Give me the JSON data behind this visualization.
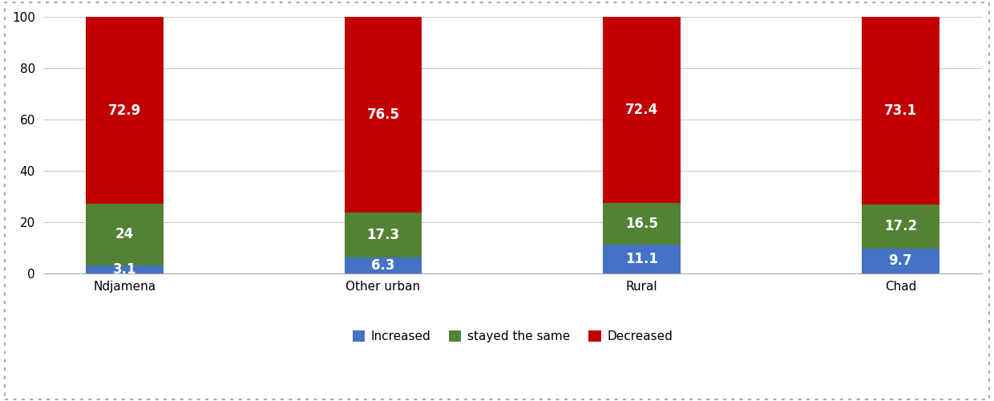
{
  "categories": [
    "Ndjamena",
    "Other urban",
    "Rural",
    "Chad"
  ],
  "increased": [
    3.1,
    6.3,
    11.1,
    9.7
  ],
  "stayed_same": [
    24,
    17.3,
    16.5,
    17.2
  ],
  "decreased": [
    72.9,
    76.5,
    72.4,
    73.1
  ],
  "increased_labels": [
    "3.1",
    "6.3",
    "11.1",
    "9.7"
  ],
  "stayed_labels": [
    "24",
    "17.3",
    "16.5",
    "17.2"
  ],
  "decreased_labels": [
    "72.9",
    "76.5",
    "72.4",
    "73.1"
  ],
  "colors": {
    "increased": "#4472C4",
    "stayed_same": "#548235",
    "decreased": "#C00000"
  },
  "legend_labels": [
    "Increased",
    "stayed the same",
    "Decreased"
  ],
  "ylim": [
    0,
    100
  ],
  "yticks": [
    0,
    20,
    40,
    60,
    80,
    100
  ],
  "bar_width": 0.3,
  "background_color": "#FFFFFF",
  "plot_bg_color": "#FFFFFF",
  "label_fontsize": 12,
  "tick_fontsize": 11,
  "legend_fontsize": 11
}
